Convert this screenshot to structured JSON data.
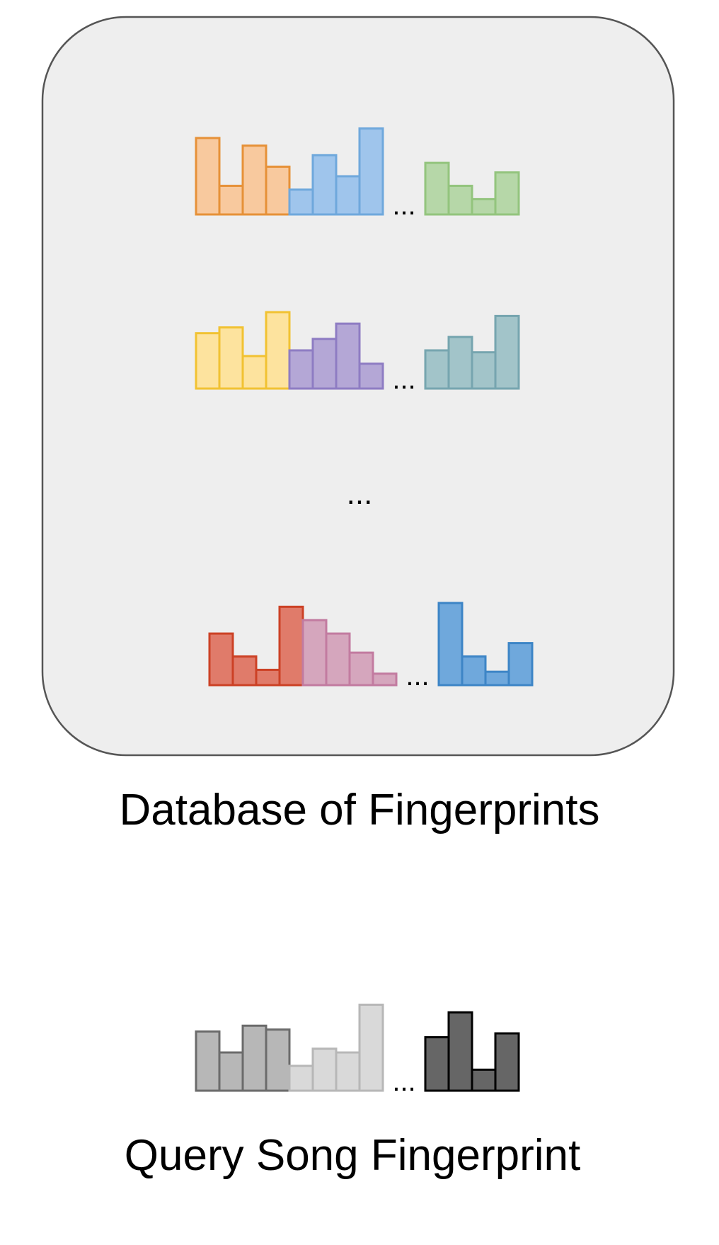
{
  "database": {
    "caption": "Database of Fingerprints",
    "ellipsis": "...",
    "fingerprints": [
      {
        "segments": [
          {
            "fill": "#f8c99e",
            "stroke": "#e69138",
            "bars": [
              4,
              1.5,
              3.6,
              2.5
            ]
          },
          {
            "fill": "#9fc5ec",
            "stroke": "#6fa8dc",
            "bars": [
              1.3,
              3.1,
              2,
              4.5
            ]
          },
          {
            "fill": "#b6d7a8",
            "stroke": "#93c47d",
            "bars": [
              2.7,
              1.5,
              0.8,
              2.2
            ]
          }
        ]
      },
      {
        "segments": [
          {
            "fill": "#fde39e",
            "stroke": "#f1c232",
            "bars": [
              2.9,
              3.2,
              1.7,
              4
            ]
          },
          {
            "fill": "#b4a7d6",
            "stroke": "#8e7cc3",
            "bars": [
              2,
              2.6,
              3.4,
              1.3
            ]
          },
          {
            "fill": "#a2c4c9",
            "stroke": "#76a5af",
            "bars": [
              2,
              2.7,
              1.9,
              3.8
            ]
          }
        ]
      },
      {
        "segments": [
          {
            "fill": "#e07b6a",
            "stroke": "#cc4125",
            "bars": [
              2.7,
              1.5,
              0.8,
              4.1
            ]
          },
          {
            "fill": "#d5a6bd",
            "stroke": "#c27ba0",
            "bars": [
              3.4,
              2.7,
              1.7,
              0.6
            ]
          },
          {
            "fill": "#6fa8dc",
            "stroke": "#3d85c6",
            "bars": [
              4.3,
              1.5,
              0.7,
              2.2
            ]
          }
        ]
      }
    ]
  },
  "query": {
    "caption": "Query Song Fingerprint",
    "ellipsis": "...",
    "segments": [
      {
        "fill": "#b7b7b7",
        "stroke": "#6b6b6b",
        "bars": [
          3.1,
          2,
          3.4,
          3.2
        ]
      },
      {
        "fill": "#d9d9d9",
        "stroke": "#b7b7b7",
        "bars": [
          1.3,
          2.2,
          2,
          4.5
        ]
      },
      {
        "fill": "#666666",
        "stroke": "#000000",
        "bars": [
          2.8,
          4.1,
          1.1,
          3
        ]
      }
    ]
  },
  "colors": {
    "database_box_fill": "#eeeeee",
    "database_box_stroke": "#555555"
  }
}
